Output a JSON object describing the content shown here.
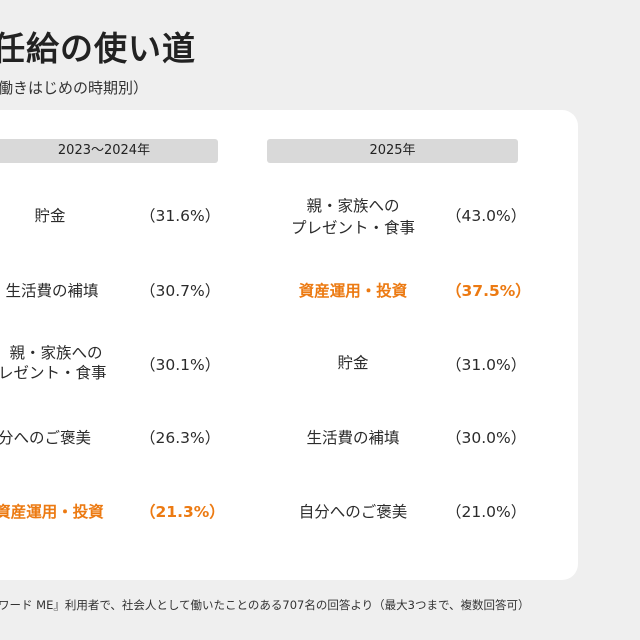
{
  "title": "任給の使い道",
  "subtitle": "働きはじめの時期別）",
  "columns": [
    {
      "header": "2023〜2024年",
      "rows": [
        {
          "label": "貯金",
          "percent": "（31.6%）",
          "highlight": false
        },
        {
          "label": "生活費の補填",
          "percent": "（30.7%）",
          "highlight": false
        },
        {
          "label_lines": [
            "親・家族への",
            "レゼント・食事"
          ],
          "percent": "（30.1%）",
          "highlight": false
        },
        {
          "label": "分へのご褒美",
          "percent": "（26.3%）",
          "highlight": false
        },
        {
          "label": "資産運用・投資",
          "percent": "（21.3%）",
          "highlight": true
        }
      ]
    },
    {
      "header": "2025年",
      "rows": [
        {
          "label_lines": [
            "親・家族への",
            "プレゼント・食事"
          ],
          "percent": "（43.0%）",
          "highlight": false
        },
        {
          "label": "資産運用・投資",
          "percent": "（37.5%）",
          "highlight": true
        },
        {
          "label": "貯金",
          "percent": "（31.0%）",
          "highlight": false
        },
        {
          "label": "生活費の補填",
          "percent": "（30.0%）",
          "highlight": false
        },
        {
          "label": "自分へのご褒美",
          "percent": "（21.0%）",
          "highlight": false
        }
      ]
    }
  ],
  "footnote": "ワード ME』利用者で、社会人として働いたことのある707名の回答より（最大3つまで、複数回答可）",
  "colors": {
    "background": "#efefef",
    "card": "#ffffff",
    "header_bar": "#d9d9d9",
    "highlight": "#ec7a12"
  }
}
